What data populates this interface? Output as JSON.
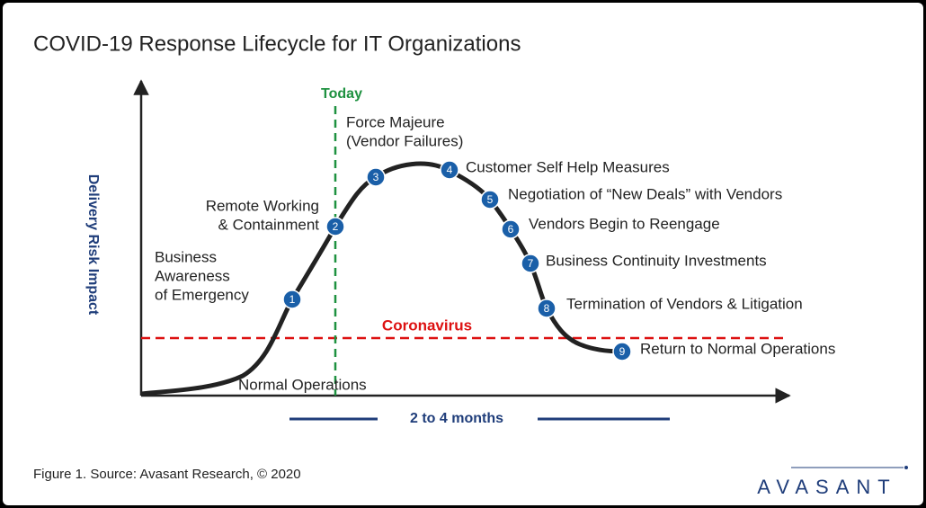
{
  "title": "COVID-19 Response Lifecycle for IT Organizations",
  "y_axis_label": "Delivery Risk Impact",
  "today_label": "Today",
  "threshold_label": "Coronavirus",
  "baseline_label": "Normal Operations",
  "duration_label": "2 to 4 months",
  "stages": [
    {
      "number": 1,
      "label": [
        "Business",
        "Awareness",
        "of Emergency"
      ]
    },
    {
      "number": 2,
      "label": [
        "Remote Working",
        "& Containment"
      ]
    },
    {
      "number": 3,
      "label": [
        "Force Majeure",
        "(Vendor Failures)"
      ]
    },
    {
      "number": 4,
      "label": [
        "Customer Self Help Measures"
      ]
    },
    {
      "number": 5,
      "label": [
        "Negotiation of “New Deals” with Vendors"
      ]
    },
    {
      "number": 6,
      "label": [
        "Vendors Begin to Reengage"
      ]
    },
    {
      "number": 7,
      "label": [
        "Business Continuity Investments"
      ]
    },
    {
      "number": 8,
      "label": [
        "Termination of Vendors & Litigation"
      ]
    },
    {
      "number": 9,
      "label": [
        "Return to Normal Operations"
      ]
    }
  ],
  "caption": "Figure 1. Source: Avasant Research, © 2020",
  "logo": "AVASANT"
}
